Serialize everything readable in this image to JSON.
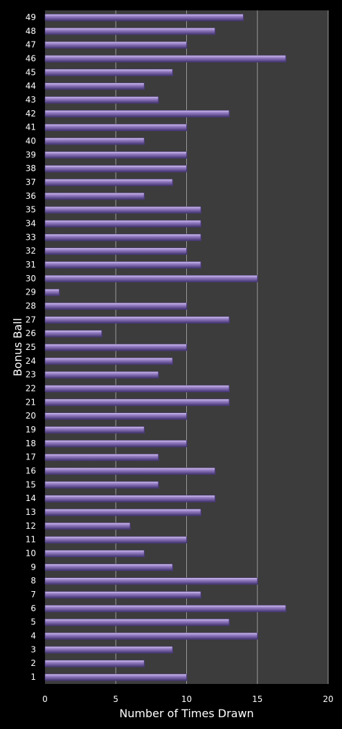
{
  "chart_data": {
    "type": "bar",
    "orientation": "horizontal",
    "xlabel": "Number of Times Drawn",
    "ylabel": "Bonus Ball",
    "xlim": [
      0,
      20
    ],
    "xticks": [
      0,
      5,
      10,
      15,
      20
    ],
    "grid": true,
    "legend": "none",
    "categories": [
      "1",
      "2",
      "3",
      "4",
      "5",
      "6",
      "7",
      "8",
      "9",
      "10",
      "11",
      "12",
      "13",
      "14",
      "15",
      "16",
      "17",
      "18",
      "19",
      "20",
      "21",
      "22",
      "23",
      "24",
      "25",
      "26",
      "27",
      "28",
      "29",
      "30",
      "31",
      "32",
      "33",
      "34",
      "35",
      "36",
      "37",
      "38",
      "39",
      "40",
      "41",
      "42",
      "43",
      "44",
      "45",
      "46",
      "47",
      "48",
      "49"
    ],
    "values": [
      10,
      7,
      9,
      15,
      13,
      17,
      11,
      15,
      9,
      7,
      10,
      6,
      11,
      12,
      8,
      12,
      8,
      10,
      7,
      10,
      13,
      13,
      8,
      9,
      10,
      4,
      13,
      10,
      1,
      15,
      11,
      10,
      11,
      11,
      11,
      7,
      9,
      10,
      10,
      7,
      10,
      13,
      8,
      7,
      9,
      17,
      10,
      12,
      14
    ],
    "colors": {
      "background": "#000000",
      "plot_area": "#3c3c3c",
      "bar": "#9a82c8",
      "bar_highlight": "#d2c3ee",
      "bar_shadow": "#4a3a78",
      "gridline": "#9a9a9a",
      "text": "#ffffff"
    }
  }
}
